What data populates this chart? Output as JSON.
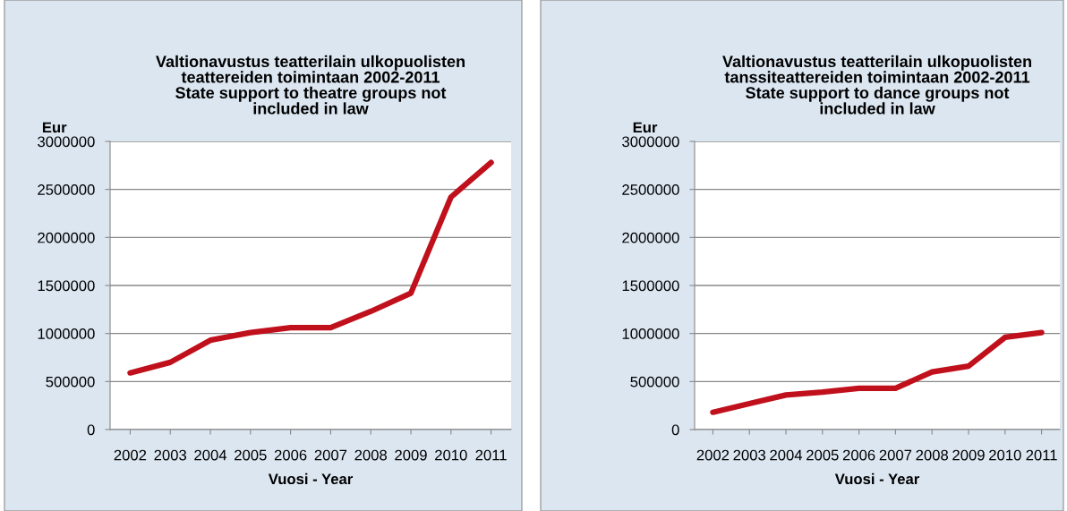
{
  "chart_data": [
    {
      "type": "line",
      "title": "Valtionavustus teatterilain ulkopuolisten\nteattereiden toimintaan 2002-2011\nState support to theatre groups not\nincluded in law",
      "xlabel": "Vuosi - Year",
      "ylabel": "Eur",
      "categories": [
        "2002",
        "2003",
        "2004",
        "2005",
        "2006",
        "2007",
        "2008",
        "2009",
        "2010",
        "2011"
      ],
      "series": [
        {
          "color": "#c0101c",
          "values": [
            590000,
            700000,
            930000,
            1010000,
            1060000,
            1060000,
            1230000,
            1420000,
            2420000,
            2780000
          ]
        }
      ],
      "ylim": [
        0,
        3000000
      ],
      "yticks": [
        0,
        500000,
        1000000,
        1500000,
        2000000,
        2500000,
        3000000
      ],
      "grid": "y",
      "legend": false,
      "marker": "none",
      "line_style": "solid"
    },
    {
      "type": "line",
      "title": "Valtionavustus teatterilain ulkopuolisten\ntanssiteattereiden toimintaan 2002-2011\nState support to dance groups not\nincluded in law",
      "xlabel": "Vuosi - Year",
      "ylabel": "Eur",
      "categories": [
        "2002",
        "2003",
        "2004",
        "2005",
        "2006",
        "2007",
        "2008",
        "2009",
        "2010",
        "2011"
      ],
      "series": [
        {
          "color": "#c0101c",
          "values": [
            180000,
            270000,
            360000,
            390000,
            430000,
            430000,
            600000,
            660000,
            960000,
            1010000
          ]
        }
      ],
      "ylim": [
        0,
        3000000
      ],
      "yticks": [
        0,
        500000,
        1000000,
        1500000,
        2000000,
        2500000,
        3000000
      ],
      "grid": "y",
      "legend": false,
      "marker": "none",
      "line_style": "solid"
    }
  ]
}
